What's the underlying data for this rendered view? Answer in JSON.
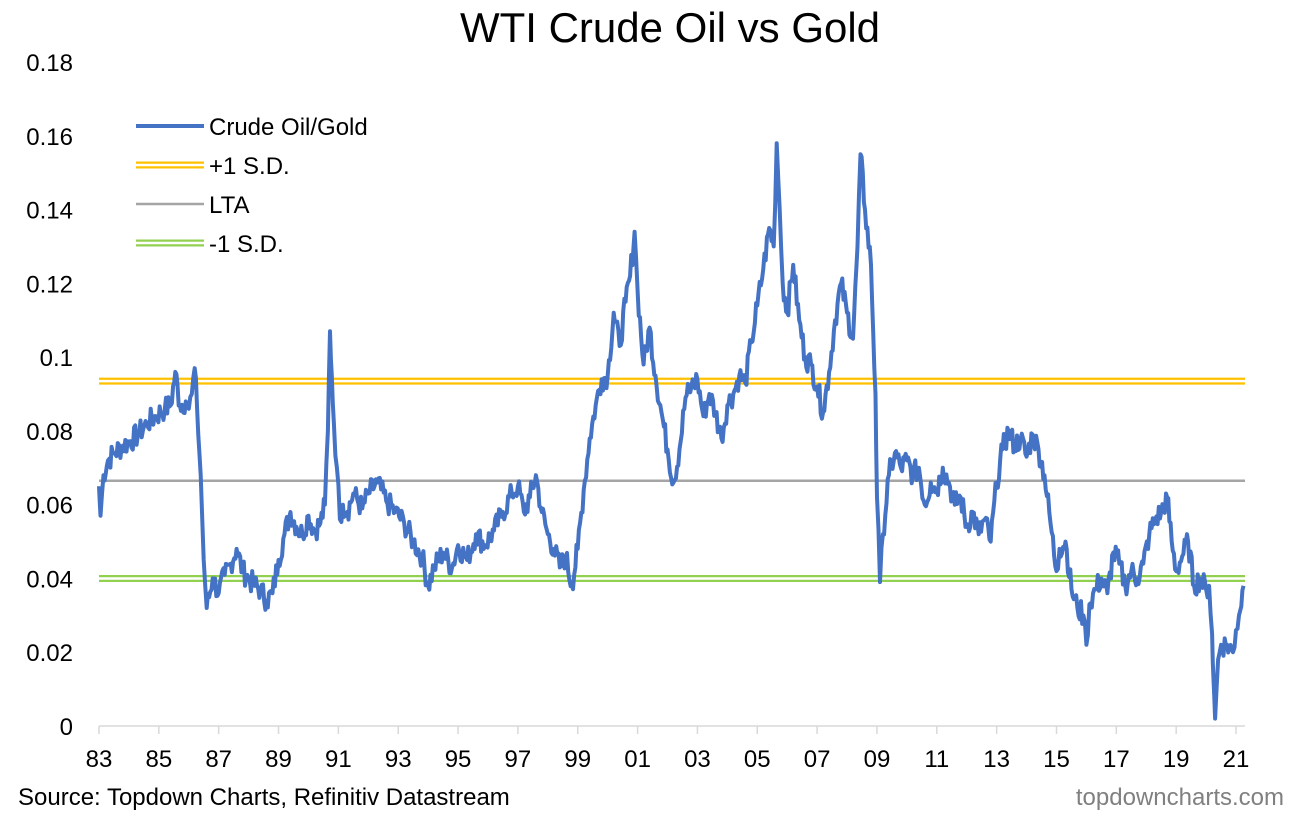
{
  "chart_data": {
    "type": "line",
    "title": "WTI Crude Oil vs Gold",
    "xlabel": "",
    "ylabel": "",
    "xlim": [
      1983.0,
      2021.3
    ],
    "ylim": [
      0,
      0.18
    ],
    "x_tick_labels": [
      "83",
      "85",
      "87",
      "89",
      "91",
      "93",
      "95",
      "97",
      "99",
      "01",
      "03",
      "05",
      "07",
      "09",
      "11",
      "13",
      "15",
      "17",
      "19",
      "21"
    ],
    "x_tick_years": [
      1983,
      1985,
      1987,
      1989,
      1991,
      1993,
      1995,
      1997,
      1999,
      2001,
      2003,
      2005,
      2007,
      2009,
      2011,
      2013,
      2015,
      2017,
      2019,
      2021
    ],
    "y_tick_labels": [
      "0",
      "0.02",
      "0.04",
      "0.06",
      "0.08",
      "0.1",
      "0.12",
      "0.14",
      "0.16",
      "0.18"
    ],
    "y_ticks": [
      0,
      0.02,
      0.04,
      0.06,
      0.08,
      0.1,
      0.12,
      0.14,
      0.16,
      0.18
    ],
    "grid": false,
    "legend_position": "top-left",
    "legend": [
      {
        "label": "Crude Oil/Gold",
        "style": "line",
        "color": "#4472c4"
      },
      {
        "label": "+1 S.D.",
        "style": "double",
        "color": "#ffc000"
      },
      {
        "label": "LTA",
        "style": "line",
        "color": "#a5a5a5"
      },
      {
        "label": "-1 S.D.",
        "style": "double",
        "color": "#92d050"
      }
    ],
    "reference_lines": [
      {
        "name": "+1 S.D.",
        "value": 0.0935,
        "color": "#ffc000"
      },
      {
        "name": "LTA",
        "value": 0.0665,
        "color": "#a5a5a5"
      },
      {
        "name": "-1 S.D.",
        "value": 0.04,
        "color": "#92d050"
      }
    ],
    "series": [
      {
        "name": "Crude Oil/Gold",
        "color": "#4472c4",
        "x": [
          1983.0,
          1983.05,
          1983.15,
          1983.3,
          1983.5,
          1983.8,
          1984.0,
          1984.3,
          1984.6,
          1984.9,
          1985.2,
          1985.4,
          1985.55,
          1985.7,
          1985.9,
          1986.0,
          1986.1,
          1986.2,
          1986.28,
          1986.4,
          1986.5,
          1986.6,
          1986.8,
          1987.0,
          1987.2,
          1987.4,
          1987.6,
          1987.8,
          1988.0,
          1988.2,
          1988.4,
          1988.6,
          1988.8,
          1989.0,
          1989.2,
          1989.4,
          1989.6,
          1989.8,
          1990.0,
          1990.2,
          1990.4,
          1990.55,
          1990.65,
          1990.72,
          1990.78,
          1990.85,
          1990.95,
          1991.05,
          1991.15,
          1991.3,
          1991.5,
          1991.8,
          1992.0,
          1992.3,
          1992.6,
          1992.9,
          1993.2,
          1993.5,
          1993.8,
          1994.0,
          1994.2,
          1994.5,
          1994.8,
          1995.0,
          1995.3,
          1995.6,
          1995.9,
          1996.2,
          1996.5,
          1996.8,
          1997.0,
          1997.2,
          1997.4,
          1997.6,
          1997.8,
          1998.0,
          1998.2,
          1998.4,
          1998.6,
          1998.8,
          1999.0,
          1999.2,
          1999.4,
          1999.6,
          1999.8,
          2000.0,
          2000.2,
          2000.4,
          2000.6,
          2000.75,
          2000.9,
          2001.0,
          2001.2,
          2001.4,
          2001.6,
          2001.8,
          2002.0,
          2002.2,
          2002.4,
          2002.6,
          2002.8,
          2003.0,
          2003.2,
          2003.4,
          2003.6,
          2003.8,
          2004.0,
          2004.2,
          2004.4,
          2004.6,
          2004.8,
          2005.0,
          2005.2,
          2005.4,
          2005.55,
          2005.65,
          2005.75,
          2005.85,
          2006.0,
          2006.2,
          2006.4,
          2006.6,
          2006.8,
          2007.0,
          2007.2,
          2007.4,
          2007.6,
          2007.8,
          2008.0,
          2008.2,
          2008.35,
          2008.45,
          2008.6,
          2008.8,
          2008.95,
          2009.0,
          2009.1,
          2009.2,
          2009.4,
          2009.6,
          2009.8,
          2010.0,
          2010.2,
          2010.4,
          2010.6,
          2010.8,
          2011.0,
          2011.2,
          2011.4,
          2011.6,
          2011.8,
          2012.0,
          2012.2,
          2012.4,
          2012.6,
          2012.8,
          2013.0,
          2013.2,
          2013.4,
          2013.6,
          2013.8,
          2014.0,
          2014.2,
          2014.4,
          2014.6,
          2014.8,
          2015.0,
          2015.1,
          2015.3,
          2015.5,
          2015.7,
          2015.9,
          2016.0,
          2016.1,
          2016.3,
          2016.5,
          2016.7,
          2016.9,
          2017.1,
          2017.3,
          2017.5,
          2017.7,
          2017.9,
          2018.1,
          2018.3,
          2018.5,
          2018.7,
          2018.85,
          2019.0,
          2019.2,
          2019.4,
          2019.6,
          2019.8,
          2020.0,
          2020.1,
          2020.2,
          2020.25,
          2020.3,
          2020.4,
          2020.5,
          2020.7,
          2020.9,
          2021.0,
          2021.1,
          2021.25
        ],
        "y": [
          0.065,
          0.057,
          0.068,
          0.072,
          0.074,
          0.076,
          0.077,
          0.079,
          0.082,
          0.084,
          0.086,
          0.087,
          0.096,
          0.087,
          0.088,
          0.086,
          0.09,
          0.097,
          0.086,
          0.068,
          0.045,
          0.032,
          0.04,
          0.036,
          0.041,
          0.044,
          0.048,
          0.042,
          0.04,
          0.038,
          0.037,
          0.034,
          0.036,
          0.045,
          0.052,
          0.058,
          0.054,
          0.052,
          0.057,
          0.053,
          0.055,
          0.06,
          0.08,
          0.107,
          0.095,
          0.082,
          0.07,
          0.056,
          0.06,
          0.058,
          0.063,
          0.059,
          0.063,
          0.066,
          0.061,
          0.058,
          0.055,
          0.05,
          0.046,
          0.038,
          0.043,
          0.047,
          0.043,
          0.049,
          0.045,
          0.052,
          0.049,
          0.053,
          0.058,
          0.063,
          0.065,
          0.058,
          0.062,
          0.068,
          0.058,
          0.052,
          0.048,
          0.043,
          0.046,
          0.038,
          0.048,
          0.064,
          0.078,
          0.087,
          0.094,
          0.095,
          0.112,
          0.103,
          0.115,
          0.122,
          0.134,
          0.118,
          0.098,
          0.108,
          0.095,
          0.085,
          0.075,
          0.066,
          0.075,
          0.089,
          0.092,
          0.094,
          0.084,
          0.09,
          0.085,
          0.078,
          0.087,
          0.09,
          0.095,
          0.093,
          0.104,
          0.114,
          0.124,
          0.135,
          0.13,
          0.158,
          0.14,
          0.12,
          0.112,
          0.125,
          0.11,
          0.1,
          0.098,
          0.092,
          0.085,
          0.096,
          0.11,
          0.12,
          0.112,
          0.105,
          0.13,
          0.155,
          0.14,
          0.125,
          0.09,
          0.062,
          0.039,
          0.052,
          0.068,
          0.074,
          0.07,
          0.072,
          0.068,
          0.07,
          0.06,
          0.066,
          0.064,
          0.07,
          0.066,
          0.06,
          0.062,
          0.054,
          0.058,
          0.052,
          0.056,
          0.05,
          0.066,
          0.075,
          0.08,
          0.076,
          0.078,
          0.073,
          0.079,
          0.075,
          0.068,
          0.055,
          0.042,
          0.048,
          0.05,
          0.037,
          0.032,
          0.03,
          0.022,
          0.033,
          0.037,
          0.04,
          0.036,
          0.047,
          0.044,
          0.038,
          0.042,
          0.04,
          0.044,
          0.052,
          0.056,
          0.058,
          0.062,
          0.05,
          0.042,
          0.046,
          0.05,
          0.038,
          0.04,
          0.037,
          0.038,
          0.025,
          0.012,
          0.002,
          0.018,
          0.022,
          0.022,
          0.02,
          0.026,
          0.03,
          0.038
        ]
      }
    ]
  },
  "footer": {
    "source": "Source: Topdown Charts, Refinitiv Datastream",
    "watermark": "topdowncharts.com"
  }
}
